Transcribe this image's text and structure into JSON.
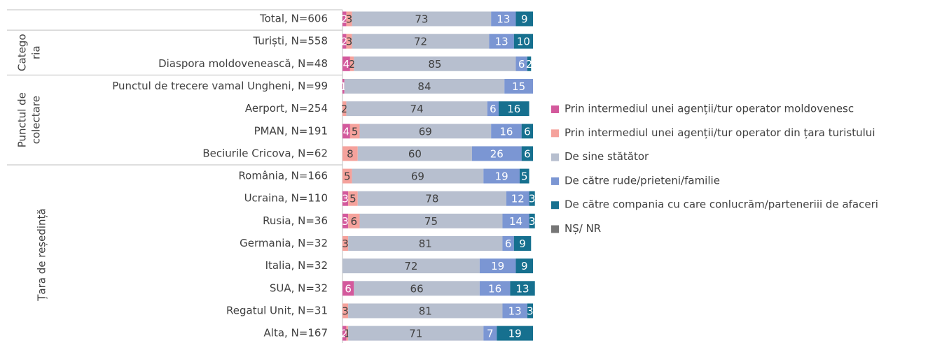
{
  "chart_data": {
    "type": "bar",
    "orientation": "horizontal",
    "stacked": true,
    "categories": [
      "Total, N=606",
      "Turiști, N=558",
      "Diaspora moldovenească, N=48",
      "Punctul de trecere vamal Ungheni, N=99",
      "Aerport, N=254",
      "PMAN, N=191",
      "Beciurile Cricova, N=62",
      "România, N=166",
      "Ucraina, N=110",
      "Rusia, N=36",
      "Germania, N=32",
      "Italia, N=32",
      "SUA, N=32",
      "Regatul Unit, N=31",
      "Alta, N=167"
    ],
    "groups": [
      {
        "lines": [
          "Catego",
          "ria"
        ]
      },
      {
        "lines": [
          "Punctul de",
          "colectare"
        ]
      },
      {
        "lines": [
          "Țara de reședință"
        ]
      }
    ],
    "xlim": [
      0,
      100
    ],
    "legend": "right",
    "series": [
      {
        "name": "Prin intermediul unei agenții/tur operator moldovenesc",
        "color": "#d3599c",
        "values": [
          2,
          2,
          4,
          1,
          0,
          4,
          0,
          0,
          3,
          3,
          0,
          0,
          6,
          0,
          2
        ]
      },
      {
        "name": "Prin intermediul unei agenții/tur operator din țara turistului",
        "color": "#f5a29c",
        "values": [
          3,
          3,
          2,
          0,
          2,
          5,
          8,
          5,
          5,
          6,
          3,
          0,
          0,
          3,
          1
        ]
      },
      {
        "name": "De sine stătător",
        "color": "#b7bfcf",
        "values": [
          73,
          72,
          85,
          84,
          74,
          69,
          60,
          69,
          78,
          75,
          81,
          72,
          66,
          81,
          71
        ]
      },
      {
        "name": "De către rude/prieteni/familie",
        "color": "#7b96d3",
        "values": [
          13,
          13,
          6,
          15,
          6,
          16,
          26,
          19,
          12,
          14,
          6,
          19,
          16,
          13,
          7
        ]
      },
      {
        "name": "De către compania cu care conlucrăm/parteneriii de afaceri",
        "color": "#16708f",
        "values": [
          9,
          10,
          2,
          0,
          16,
          6,
          6,
          5,
          3,
          3,
          9,
          9,
          13,
          3,
          19
        ]
      },
      {
        "name": "NȘ/ NR",
        "color": "#767676",
        "values": [
          0,
          0,
          0,
          0,
          0,
          0,
          0,
          0,
          0,
          0,
          0,
          0,
          0,
          0,
          0
        ]
      }
    ]
  }
}
